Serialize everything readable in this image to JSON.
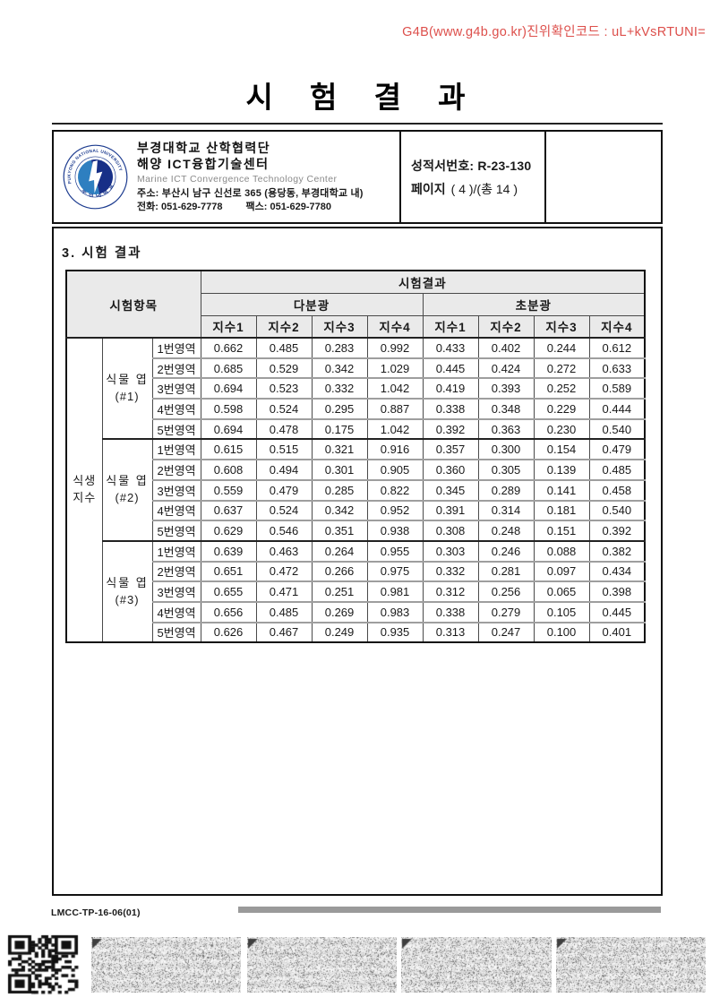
{
  "page": {
    "verification_code_line": "G4B(www.g4b.go.kr)진위확인코드 : uL+kVsRTUNI=",
    "title": "시 험 결 과",
    "footer_code": "LMCC-TP-16-06(01)"
  },
  "header": {
    "org_name_line1": "부경대학교 산학협력단",
    "org_name_line2": "해양 ICT융합기술센터",
    "org_name_en": "Marine ICT Convergence Technology Center",
    "address": "주소: 부산시 남구 신선로 365 (용당동, 부경대학교 내)",
    "phone_label": "전화:",
    "phone": "051-629-7778",
    "fax_label": "팩스:",
    "fax": "051-629-7780",
    "report_no_label": "성적서번호:",
    "report_no": "R-23-130",
    "page_label": "페이지",
    "page_value": "( 4 )/(총 14 )",
    "logo": {
      "top_text": "PUKYONG NATIONAL UNIVERSITY",
      "bottom_text": "부경대학교"
    }
  },
  "section": {
    "title": "3. 시험 결과"
  },
  "table": {
    "col_item": "시험항목",
    "col_result": "시험결과",
    "subgroup_multi": "다분광",
    "subgroup_hyper": "초분광",
    "index_headers": [
      "지수1",
      "지수2",
      "지수3",
      "지수4"
    ],
    "row_category_lines": [
      "식생",
      "지수"
    ],
    "groups": [
      {
        "label_line1": "식물 엽",
        "label_line2": "(#1)",
        "rows": [
          {
            "region": "1번영역",
            "multi": [
              "0.662",
              "0.485",
              "0.283",
              "0.992"
            ],
            "hyper": [
              "0.433",
              "0.402",
              "0.244",
              "0.612"
            ]
          },
          {
            "region": "2번영역",
            "multi": [
              "0.685",
              "0.529",
              "0.342",
              "1.029"
            ],
            "hyper": [
              "0.445",
              "0.424",
              "0.272",
              "0.633"
            ]
          },
          {
            "region": "3번영역",
            "multi": [
              "0.694",
              "0.523",
              "0.332",
              "1.042"
            ],
            "hyper": [
              "0.419",
              "0.393",
              "0.252",
              "0.589"
            ]
          },
          {
            "region": "4번영역",
            "multi": [
              "0.598",
              "0.524",
              "0.295",
              "0.887"
            ],
            "hyper": [
              "0.338",
              "0.348",
              "0.229",
              "0.444"
            ]
          },
          {
            "region": "5번영역",
            "multi": [
              "0.694",
              "0.478",
              "0.175",
              "1.042"
            ],
            "hyper": [
              "0.392",
              "0.363",
              "0.230",
              "0.540"
            ]
          }
        ]
      },
      {
        "label_line1": "식물 엽",
        "label_line2": "(#2)",
        "rows": [
          {
            "region": "1번영역",
            "multi": [
              "0.615",
              "0.515",
              "0.321",
              "0.916"
            ],
            "hyper": [
              "0.357",
              "0.300",
              "0.154",
              "0.479"
            ]
          },
          {
            "region": "2번영역",
            "multi": [
              "0.608",
              "0.494",
              "0.301",
              "0.905"
            ],
            "hyper": [
              "0.360",
              "0.305",
              "0.139",
              "0.485"
            ]
          },
          {
            "region": "3번영역",
            "multi": [
              "0.559",
              "0.479",
              "0.285",
              "0.822"
            ],
            "hyper": [
              "0.345",
              "0.289",
              "0.141",
              "0.458"
            ]
          },
          {
            "region": "4번영역",
            "multi": [
              "0.637",
              "0.524",
              "0.342",
              "0.952"
            ],
            "hyper": [
              "0.391",
              "0.314",
              "0.181",
              "0.540"
            ]
          },
          {
            "region": "5번영역",
            "multi": [
              "0.629",
              "0.546",
              "0.351",
              "0.938"
            ],
            "hyper": [
              "0.308",
              "0.248",
              "0.151",
              "0.392"
            ]
          }
        ]
      },
      {
        "label_line1": "식물 엽",
        "label_line2": "(#3)",
        "rows": [
          {
            "region": "1번영역",
            "multi": [
              "0.639",
              "0.463",
              "0.264",
              "0.955"
            ],
            "hyper": [
              "0.303",
              "0.246",
              "0.088",
              "0.382"
            ]
          },
          {
            "region": "2번영역",
            "multi": [
              "0.651",
              "0.472",
              "0.266",
              "0.975"
            ],
            "hyper": [
              "0.332",
              "0.281",
              "0.097",
              "0.434"
            ]
          },
          {
            "region": "3번영역",
            "multi": [
              "0.655",
              "0.471",
              "0.251",
              "0.981"
            ],
            "hyper": [
              "0.312",
              "0.256",
              "0.065",
              "0.398"
            ]
          },
          {
            "region": "4번영역",
            "multi": [
              "0.656",
              "0.485",
              "0.269",
              "0.983"
            ],
            "hyper": [
              "0.338",
              "0.279",
              "0.105",
              "0.445"
            ]
          },
          {
            "region": "5번영역",
            "multi": [
              "0.626",
              "0.467",
              "0.249",
              "0.935"
            ],
            "hyper": [
              "0.313",
              "0.247",
              "0.100",
              "0.401"
            ]
          }
        ]
      }
    ]
  },
  "colors": {
    "accent_red": "#dd4f4b",
    "table_header_bg": "#eaeaea",
    "footer_bar_gray": "#9a9a9a",
    "logo_navy": "#1c3b8f",
    "logo_teal": "#2e7fc0"
  }
}
